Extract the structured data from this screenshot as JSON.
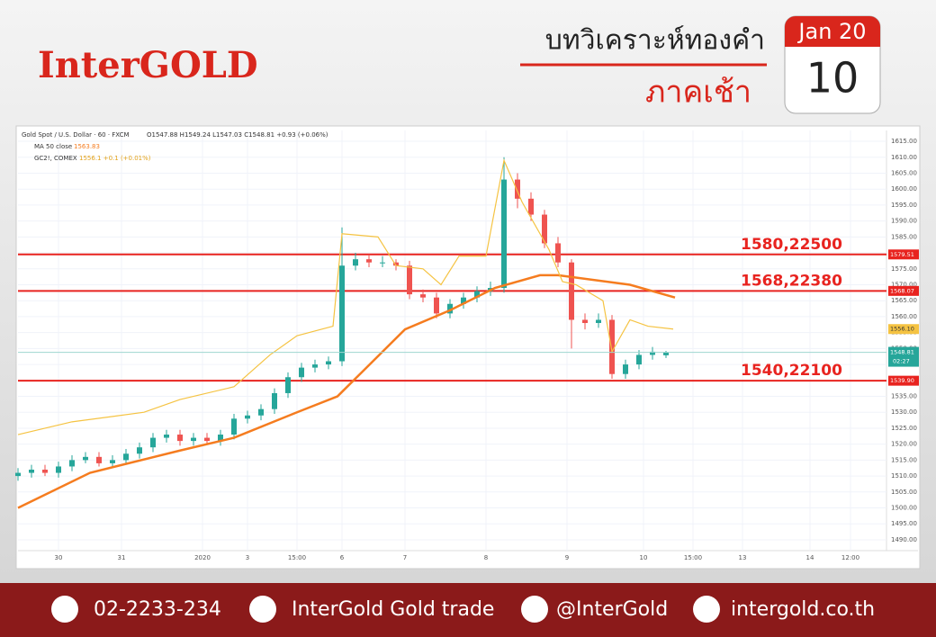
{
  "header": {
    "brand": "InterGOLD",
    "title": "บทวิเคราะห์ทองคำ",
    "subtitle": "ภาคเช้า",
    "calendar": {
      "month": "Jan 20",
      "day": "10"
    }
  },
  "footer": {
    "phone": "02-2233-234",
    "facebook": "InterGold Gold trade",
    "line": "@InterGold",
    "website": "intergold.co.th"
  },
  "chart_data": {
    "type": "candlestick",
    "legend": {
      "symbol": "Gold Spot / U.S. Dollar · 60 · FXCM",
      "ohlc": "O1547.88 H1549.24 L1547.03 C1548.81 +0.93 (+0.06%)",
      "ma_name": "MA 50 close",
      "ma_value": "1563.83",
      "gc_name": "GC2!, COMEX",
      "gc_value": "1556.1 +0.1 (+0.01%)"
    },
    "candle_colors": {
      "up": "#26a69a",
      "down": "#ef5350"
    },
    "x": [
      0,
      3,
      6,
      9,
      12,
      15,
      18,
      21,
      24,
      27,
      30,
      33,
      36,
      39,
      42,
      45,
      48,
      51,
      54,
      57,
      60,
      63,
      66,
      69,
      72,
      75,
      78,
      81,
      84,
      87,
      90,
      93,
      96,
      99,
      102,
      105,
      108,
      111,
      114,
      117,
      120,
      123,
      126,
      129,
      132,
      135,
      138,
      141,
      144
    ],
    "open": [
      1510,
      1511,
      1512,
      1511,
      1513,
      1515,
      1516,
      1514,
      1515,
      1517,
      1519,
      1522,
      1523,
      1521,
      1522,
      1521,
      1523,
      1528,
      1529,
      1531,
      1536,
      1541,
      1544,
      1545,
      1546,
      1576,
      1578,
      1577,
      1577,
      1576,
      1567,
      1566,
      1561,
      1564,
      1566,
      1568,
      1569,
      1603,
      1597,
      1592,
      1583,
      1577,
      1559,
      1558,
      1559,
      1542,
      1545,
      1548,
      1547.88
    ],
    "high": [
      1512.5,
      1513.5,
      1513.5,
      1514.5,
      1516.5,
      1517.5,
      1517.5,
      1516.5,
      1518.5,
      1520.5,
      1523.5,
      1524.5,
      1524.5,
      1523.5,
      1523.5,
      1524.5,
      1529.5,
      1530.5,
      1532.5,
      1537.5,
      1542.5,
      1545.5,
      1546.5,
      1547.5,
      1588,
      1580,
      1579.5,
      1579,
      1578,
      1577.5,
      1568.5,
      1567.5,
      1565.5,
      1567.5,
      1569.5,
      1571,
      1610,
      1605,
      1599,
      1593.5,
      1585,
      1578,
      1561,
      1561,
      1560.5,
      1546.5,
      1549.5,
      1550.5,
      1549.24
    ],
    "low": [
      1508.5,
      1509.5,
      1510,
      1509.5,
      1511.5,
      1514,
      1513,
      1512.5,
      1514,
      1515.5,
      1517.5,
      1520.5,
      1519.5,
      1519.5,
      1520,
      1519.5,
      1521.5,
      1526.5,
      1527.5,
      1529.5,
      1534.5,
      1539.5,
      1542.5,
      1543.5,
      1544.5,
      1574.5,
      1575.5,
      1575.5,
      1574.5,
      1565.5,
      1564.5,
      1559.5,
      1559.5,
      1562.5,
      1564.5,
      1566.5,
      1567.5,
      1594,
      1590,
      1581.5,
      1575.5,
      1550,
      1556,
      1556.5,
      1540.5,
      1540.5,
      1543.5,
      1546.5,
      1547.03
    ],
    "close": [
      1511,
      1512,
      1511,
      1513,
      1515,
      1516,
      1514,
      1515,
      1517,
      1519,
      1522,
      1523,
      1521,
      1522,
      1521,
      1523,
      1528,
      1529,
      1531,
      1536,
      1541,
      1544,
      1545,
      1546,
      1576,
      1578,
      1577,
      1577,
      1576,
      1567,
      1566,
      1561,
      1564,
      1566,
      1568,
      1569,
      1603,
      1597,
      1592,
      1583,
      1577,
      1559,
      1558,
      1559,
      1542,
      1545,
      1548,
      1549,
      1548.81
    ],
    "lines": [
      {
        "name": "MA 50 close",
        "color": "#f57c1f",
        "width": 2.5,
        "x": [
          0,
          16,
          36,
          48,
          62,
          71,
          76,
          86,
          96,
          106,
          116,
          120,
          136,
          146
        ],
        "values": [
          1500,
          1511,
          1518,
          1522,
          1530,
          1535,
          1542,
          1556,
          1562,
          1569,
          1573,
          1573,
          1570,
          1566
        ]
      },
      {
        "name": "GC2!, COMEX",
        "color": "#f5c342",
        "width": 1.2,
        "x": [
          0,
          12,
          28,
          36,
          48,
          56,
          62,
          70,
          72,
          80,
          84,
          90,
          94,
          98,
          104,
          108,
          112,
          118,
          121,
          124,
          130,
          132,
          136,
          140,
          145.6
        ],
        "values": [
          1523,
          1527,
          1530,
          1534,
          1538,
          1548,
          1554,
          1557,
          1586,
          1585,
          1576,
          1575,
          1570,
          1579,
          1579,
          1609,
          1596,
          1581,
          1571,
          1570,
          1565,
          1549,
          1559,
          1557,
          1556.1
        ]
      }
    ],
    "levels": [
      {
        "value": 1579.51,
        "value_label": "1579.51",
        "label": "1580,22500"
      },
      {
        "value": 1568.07,
        "value_label": "1568.07",
        "label": "1568,22380"
      },
      {
        "value": 1539.9,
        "value_label": "1539.90",
        "label": "1540,22100"
      }
    ],
    "level_color": "#e8231f",
    "gc_last": {
      "value": 1556.1,
      "label": "1556.10"
    },
    "last_price": {
      "value": 1548.81,
      "label": "1548.81",
      "countdown": "02:27"
    },
    "xlim": [
      0,
      193
    ],
    "xticks": [
      {
        "value": 9,
        "label": "30"
      },
      {
        "value": 23,
        "label": "31"
      },
      {
        "value": 41,
        "label": "2020"
      },
      {
        "value": 51,
        "label": "3"
      },
      {
        "value": 62,
        "label": "15:00"
      },
      {
        "value": 72,
        "label": "6"
      },
      {
        "value": 86,
        "label": "7"
      },
      {
        "value": 104,
        "label": "8"
      },
      {
        "value": 122,
        "label": "9"
      },
      {
        "value": 139,
        "label": "10"
      },
      {
        "value": 150,
        "label": "15:00"
      },
      {
        "value": 161,
        "label": "13"
      },
      {
        "value": 176,
        "label": "14"
      },
      {
        "value": 185,
        "label": "12:00"
      }
    ],
    "ylim": [
      1486.6,
      1618.4
    ],
    "yticks": [
      {
        "value": 1490,
        "label": "1490.00"
      },
      {
        "value": 1495,
        "label": "1495.00"
      },
      {
        "value": 1500,
        "label": "1500.00"
      },
      {
        "value": 1505,
        "label": "1505.00"
      },
      {
        "value": 1510,
        "label": "1510.00"
      },
      {
        "value": 1515,
        "label": "1515.00"
      },
      {
        "value": 1520,
        "label": "1520.00"
      },
      {
        "value": 1525,
        "label": "1525.00"
      },
      {
        "value": 1530,
        "label": "1530.00"
      },
      {
        "value": 1535,
        "label": "1535.00"
      },
      {
        "value": 1540,
        "label": "1540.00"
      },
      {
        "value": 1545,
        "label": "1545.00"
      },
      {
        "value": 1550,
        "label": "1550.00"
      },
      {
        "value": 1555,
        "label": "1555.00"
      },
      {
        "value": 1560,
        "label": "1560.00"
      },
      {
        "value": 1565,
        "label": "1565.00"
      },
      {
        "value": 1570,
        "label": "1570.00"
      },
      {
        "value": 1575,
        "label": "1575.00"
      },
      {
        "value": 1580,
        "label": "1580.00"
      },
      {
        "value": 1585,
        "label": "1585.00"
      },
      {
        "value": 1590,
        "label": "1590.00"
      },
      {
        "value": 1595,
        "label": "1595.00"
      },
      {
        "value": 1600,
        "label": "1600.00"
      },
      {
        "value": 1605,
        "label": "1605.00"
      },
      {
        "value": 1610,
        "label": "1610.00"
      },
      {
        "value": 1615,
        "label": "1615.00"
      }
    ],
    "grid": true
  }
}
